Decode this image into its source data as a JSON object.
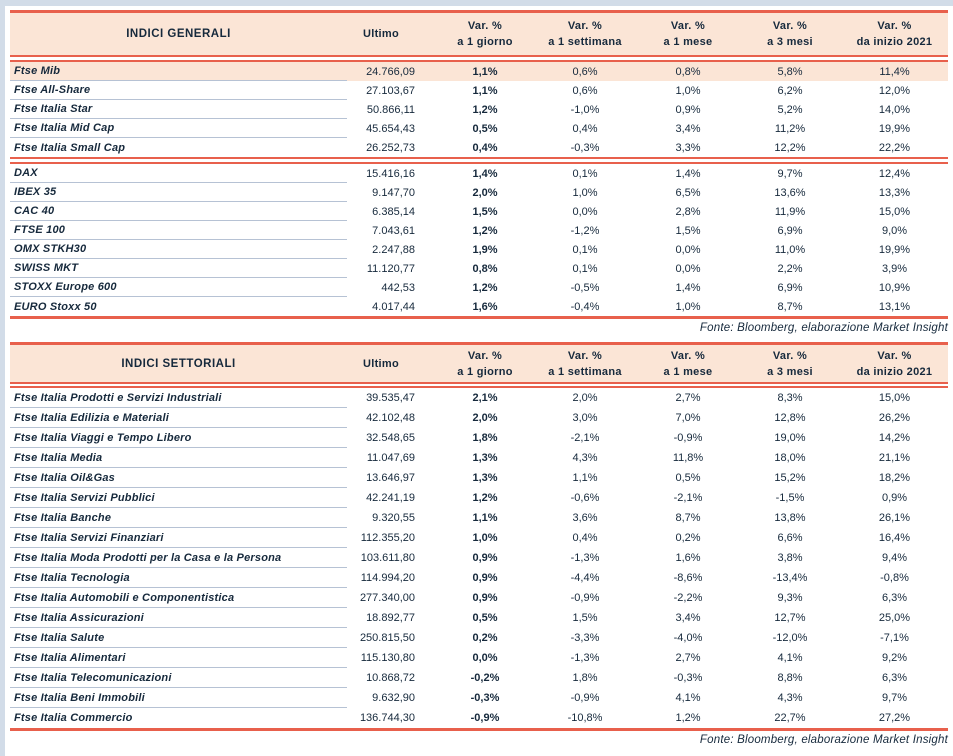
{
  "colors": {
    "accent_red": "#e8604c",
    "header_and_highlight_bg": "#fbe5d6",
    "text_navy": "#16293c",
    "row_divider": "#b6c2d4",
    "page_margin_blue": "#d2dce8"
  },
  "col_headers": {
    "ultimo": "Ultimo",
    "var_label": "Var. %",
    "periods": [
      "a 1 giorno",
      "a 1 settimana",
      "a 1 mese",
      "a 3 mesi",
      "da inizio 2021"
    ]
  },
  "tables": [
    {
      "title": "INDICI GENERALI",
      "source": "Fonte: Bloomberg, elaborazione Market Insight",
      "groups": [
        {
          "highlight_first_row": true,
          "rows": [
            [
              "Ftse Mib",
              "24.766,09",
              "1,1%",
              "0,6%",
              "0,8%",
              "5,8%",
              "11,4%"
            ],
            [
              "Ftse All-Share",
              "27.103,67",
              "1,1%",
              "0,6%",
              "1,0%",
              "6,2%",
              "12,0%"
            ],
            [
              "Ftse Italia Star",
              "50.866,11",
              "1,2%",
              "-1,0%",
              "0,9%",
              "5,2%",
              "14,0%"
            ],
            [
              "Ftse Italia Mid Cap",
              "45.654,43",
              "0,5%",
              "0,4%",
              "3,4%",
              "11,2%",
              "19,9%"
            ],
            [
              "Ftse Italia Small Cap",
              "26.252,73",
              "0,4%",
              "-0,3%",
              "3,3%",
              "12,2%",
              "22,2%"
            ]
          ]
        },
        {
          "highlight_first_row": false,
          "rows": [
            [
              "DAX",
              "15.416,16",
              "1,4%",
              "0,1%",
              "1,4%",
              "9,7%",
              "12,4%"
            ],
            [
              "IBEX 35",
              "9.147,70",
              "2,0%",
              "1,0%",
              "6,5%",
              "13,6%",
              "13,3%"
            ],
            [
              "CAC 40",
              "6.385,14",
              "1,5%",
              "0,0%",
              "2,8%",
              "11,9%",
              "15,0%"
            ],
            [
              "FTSE 100",
              "7.043,61",
              "1,2%",
              "-1,2%",
              "1,5%",
              "6,9%",
              "9,0%"
            ],
            [
              "OMX STKH30",
              "2.247,88",
              "1,9%",
              "0,1%",
              "0,0%",
              "11,0%",
              "19,9%"
            ],
            [
              "SWISS MKT",
              "11.120,77",
              "0,8%",
              "0,1%",
              "0,0%",
              "2,2%",
              "3,9%"
            ],
            [
              "STOXX Europe 600",
              "442,53",
              "1,2%",
              "-0,5%",
              "1,4%",
              "6,9%",
              "10,9%"
            ],
            [
              "EURO Stoxx 50",
              "4.017,44",
              "1,6%",
              "-0,4%",
              "1,0%",
              "8,7%",
              "13,1%"
            ]
          ]
        }
      ]
    },
    {
      "title": "INDICI SETTORIALI",
      "source": "Fonte: Bloomberg, elaborazione Market Insight",
      "groups": [
        {
          "highlight_first_row": false,
          "rows": [
            [
              "Ftse Italia Prodotti e Servizi Industriali",
              "39.535,47",
              "2,1%",
              "2,0%",
              "2,7%",
              "8,3%",
              "15,0%"
            ],
            [
              "Ftse Italia Edilizia e Materiali",
              "42.102,48",
              "2,0%",
              "3,0%",
              "7,0%",
              "12,8%",
              "26,2%"
            ],
            [
              "Ftse Italia Viaggi e Tempo Libero",
              "32.548,65",
              "1,8%",
              "-2,1%",
              "-0,9%",
              "19,0%",
              "14,2%"
            ],
            [
              "Ftse Italia Media",
              "11.047,69",
              "1,3%",
              "4,3%",
              "11,8%",
              "18,0%",
              "21,1%"
            ],
            [
              "Ftse Italia Oil&Gas",
              "13.646,97",
              "1,3%",
              "1,1%",
              "0,5%",
              "15,2%",
              "18,2%"
            ],
            [
              "Ftse Italia Servizi Pubblici",
              "42.241,19",
              "1,2%",
              "-0,6%",
              "-2,1%",
              "-1,5%",
              "0,9%"
            ],
            [
              "Ftse Italia Banche",
              "9.320,55",
              "1,1%",
              "3,6%",
              "8,7%",
              "13,8%",
              "26,1%"
            ],
            [
              "Ftse Italia Servizi Finanziari",
              "112.355,20",
              "1,0%",
              "0,4%",
              "0,2%",
              "6,6%",
              "16,4%"
            ],
            [
              "Ftse Italia Moda Prodotti per la Casa e la Persona",
              "103.611,80",
              "0,9%",
              "-1,3%",
              "1,6%",
              "3,8%",
              "9,4%"
            ],
            [
              "Ftse Italia Tecnologia",
              "114.994,20",
              "0,9%",
              "-4,4%",
              "-8,6%",
              "-13,4%",
              "-0,8%"
            ],
            [
              "Ftse Italia Automobili e Componentistica",
              "277.340,00",
              "0,9%",
              "-0,9%",
              "-2,2%",
              "9,3%",
              "6,3%"
            ],
            [
              "Ftse Italia Assicurazioni",
              "18.892,77",
              "0,5%",
              "1,5%",
              "3,4%",
              "12,7%",
              "25,0%"
            ],
            [
              "Ftse Italia Salute",
              "250.815,50",
              "0,2%",
              "-3,3%",
              "-4,0%",
              "-12,0%",
              "-7,1%"
            ],
            [
              "Ftse Italia Alimentari",
              "115.130,80",
              "0,0%",
              "-1,3%",
              "2,7%",
              "4,1%",
              "9,2%"
            ],
            [
              "Ftse Italia Telecomunicazioni",
              "10.868,72",
              "-0,2%",
              "1,8%",
              "-0,3%",
              "8,8%",
              "6,3%"
            ],
            [
              "Ftse Italia Beni Immobili",
              "9.632,90",
              "-0,3%",
              "-0,9%",
              "4,1%",
              "4,3%",
              "9,7%"
            ],
            [
              "Ftse Italia Commercio",
              "136.744,30",
              "-0,9%",
              "-10,8%",
              "1,2%",
              "22,7%",
              "27,2%"
            ]
          ]
        }
      ]
    }
  ]
}
